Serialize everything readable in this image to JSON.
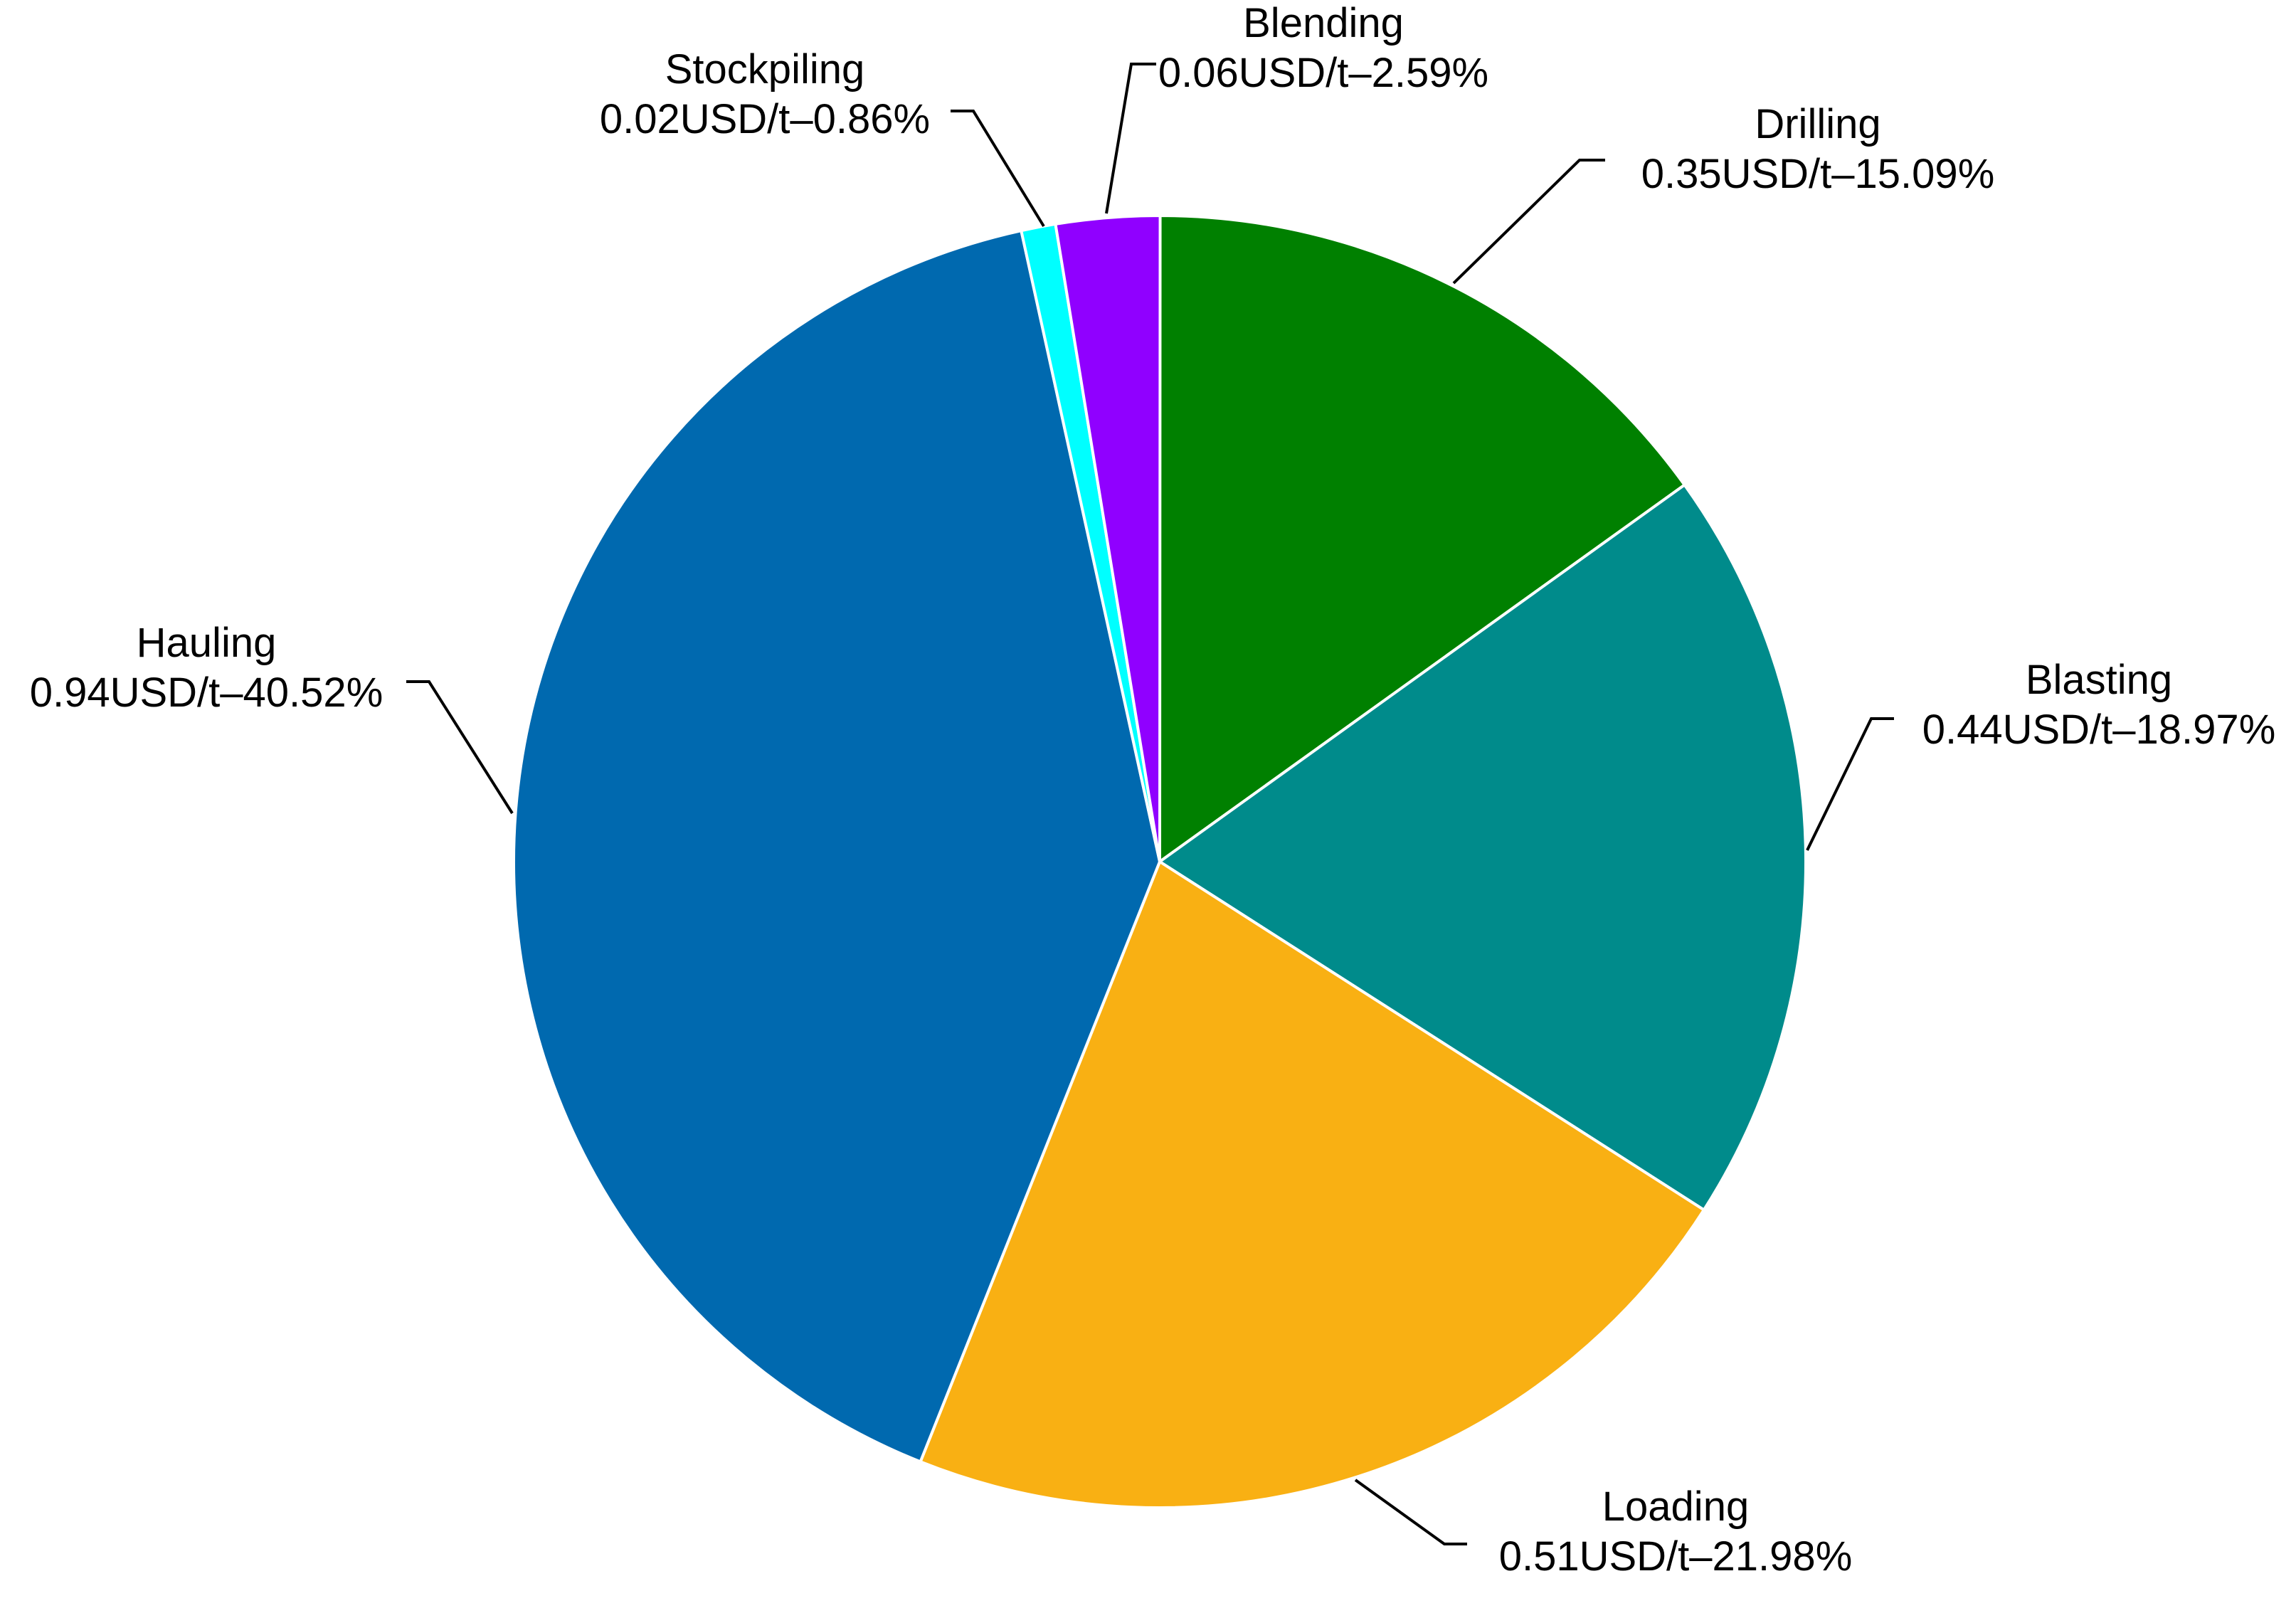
{
  "chart_data": {
    "type": "pie",
    "title": "",
    "start_angle_deg": 0,
    "direction": "clockwise",
    "slices": [
      {
        "name": "Drilling",
        "value": 0.35,
        "value_label": "0.35USD/t",
        "percent": 15.09,
        "percent_label": "15.09%",
        "color": "#008000"
      },
      {
        "name": "Blasting",
        "value": 0.44,
        "value_label": "0.44USD/t",
        "percent": 18.97,
        "percent_label": "18.97%",
        "color": "#008B8B"
      },
      {
        "name": "Loading",
        "value": 0.51,
        "value_label": "0.51USD/t",
        "percent": 21.98,
        "percent_label": "21.98%",
        "color": "#F9B013"
      },
      {
        "name": "Hauling",
        "value": 0.94,
        "value_label": "0.94USD/t",
        "percent": 40.52,
        "percent_label": "40.52%",
        "color": "#0069AF"
      },
      {
        "name": "Stockpiling",
        "value": 0.02,
        "value_label": "0.02USD/t",
        "percent": 0.86,
        "percent_label": "0.86%",
        "color": "#00FFFF"
      },
      {
        "name": "Blending",
        "value": 0.06,
        "value_label": "0.06USD/t",
        "percent": 2.59,
        "percent_label": "2.59%",
        "color": "#9000FF"
      }
    ],
    "label_separator": "–"
  }
}
